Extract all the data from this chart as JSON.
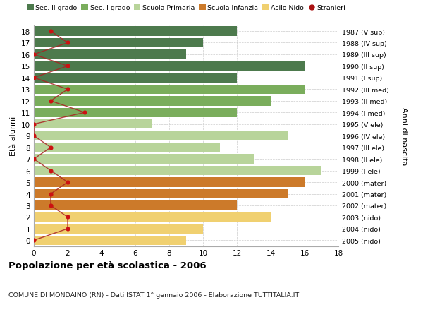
{
  "ages": [
    18,
    17,
    16,
    15,
    14,
    13,
    12,
    11,
    10,
    9,
    8,
    7,
    6,
    5,
    4,
    3,
    2,
    1,
    0
  ],
  "anni_nascita": [
    "1987 (V sup)",
    "1988 (IV sup)",
    "1989 (III sup)",
    "1990 (II sup)",
    "1991 (I sup)",
    "1992 (III med)",
    "1993 (II med)",
    "1994 (I med)",
    "1995 (V ele)",
    "1996 (IV ele)",
    "1997 (III ele)",
    "1998 (II ele)",
    "1999 (I ele)",
    "2000 (mater)",
    "2001 (mater)",
    "2002 (mater)",
    "2003 (nido)",
    "2004 (nido)",
    "2005 (nido)"
  ],
  "bar_values": [
    12,
    10,
    9,
    16,
    12,
    16,
    14,
    12,
    7,
    15,
    11,
    13,
    17,
    16,
    15,
    12,
    14,
    10,
    9
  ],
  "bar_colors": [
    "#4d7a4d",
    "#4d7a4d",
    "#4d7a4d",
    "#4d7a4d",
    "#4d7a4d",
    "#7aad5c",
    "#7aad5c",
    "#7aad5c",
    "#b8d49a",
    "#b8d49a",
    "#b8d49a",
    "#b8d49a",
    "#b8d49a",
    "#cc7a2a",
    "#cc7a2a",
    "#cc7a2a",
    "#f0d070",
    "#f0d070",
    "#f0d070"
  ],
  "stranieri": [
    1,
    2,
    0,
    2,
    0,
    2,
    1,
    3,
    0,
    0,
    1,
    0,
    1,
    2,
    1,
    1,
    2,
    2,
    0
  ],
  "legend_labels": [
    "Sec. II grado",
    "Sec. I grado",
    "Scuola Primaria",
    "Scuola Infanzia",
    "Asilo Nido",
    "Stranieri"
  ],
  "legend_colors": [
    "#4d7a4d",
    "#7aad5c",
    "#b8d49a",
    "#cc7a2a",
    "#f0d070",
    "#aa1111"
  ],
  "ylabel_left": "Età alunni",
  "ylabel_right": "Anni di nascita",
  "title": "Popolazione per età scolastica - 2006",
  "subtitle": "COMUNE DI MONDAINO (RN) - Dati ISTAT 1° gennaio 2006 - Elaborazione TUTTITALIA.IT",
  "xlim": [
    0,
    18
  ],
  "bg_color": "#ffffff",
  "grid_color": "#cccccc",
  "stranieri_line_color": "#aa2222",
  "stranieri_dot_color": "#cc1111"
}
